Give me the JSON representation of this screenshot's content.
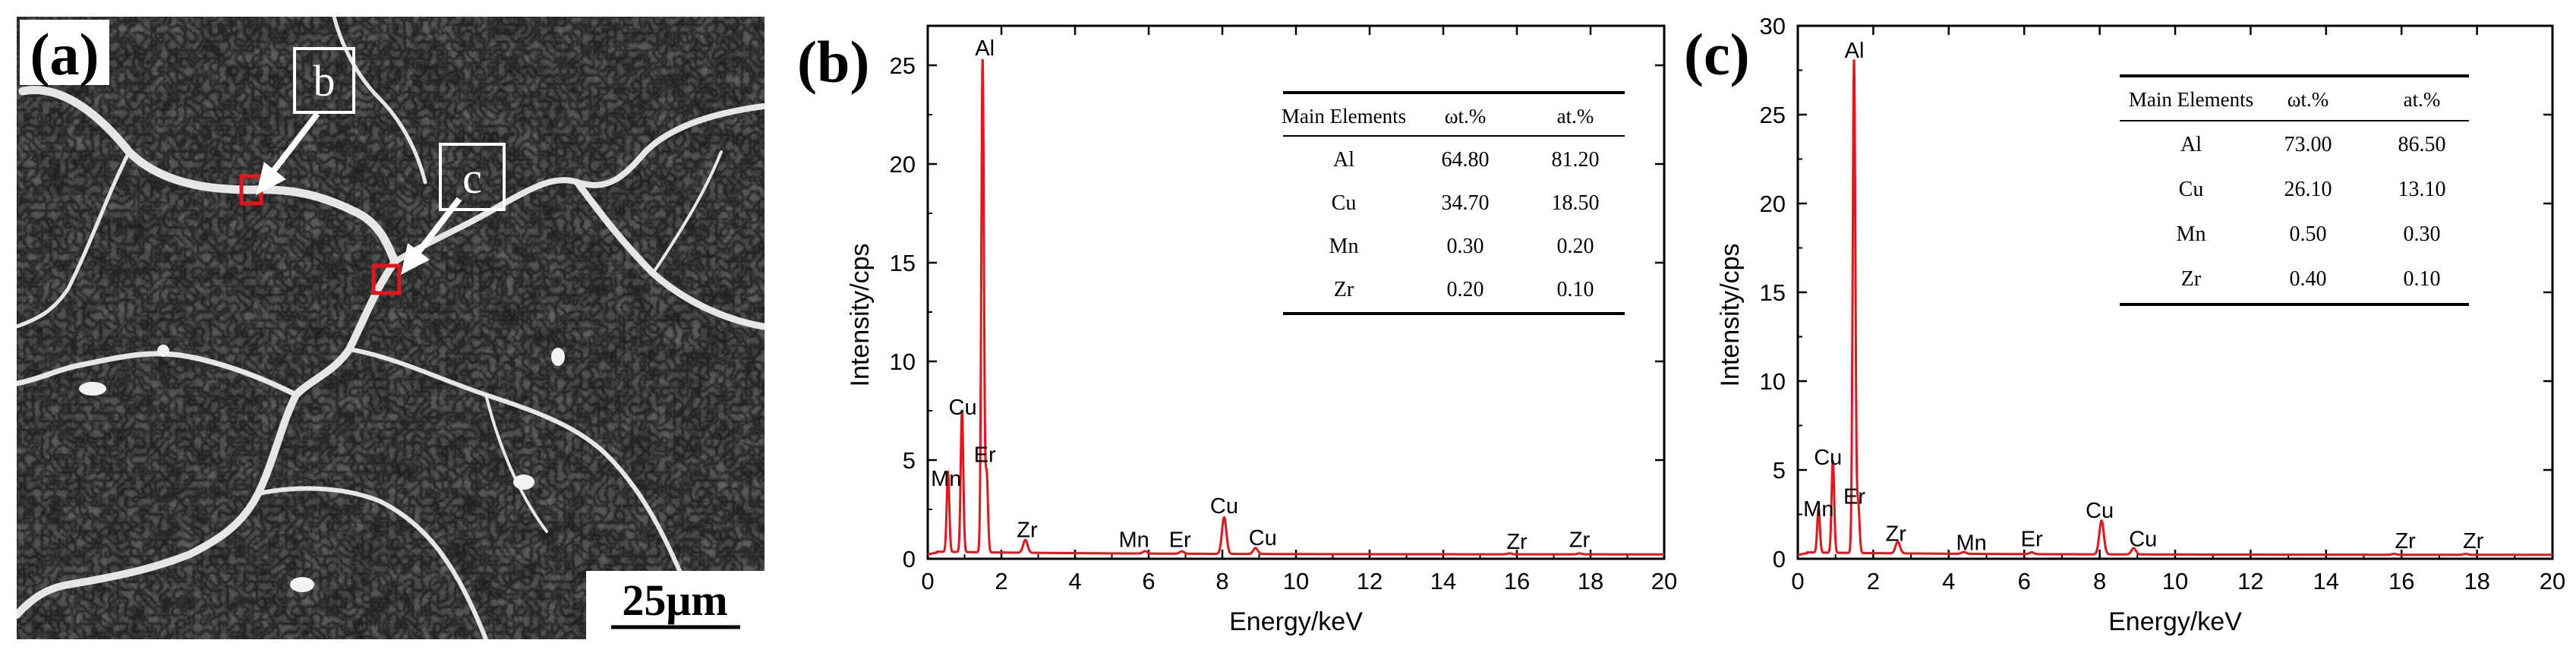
{
  "sem": {
    "panel_label": "(a)",
    "marker_b": "b",
    "marker_c": "c",
    "scale_bar": "25μm"
  },
  "chart_data": [
    {
      "type": "line",
      "panel_label": "(b)",
      "xlabel": "Energy/keV",
      "ylabel": "Intensity/cps",
      "xlim": [
        0,
        20
      ],
      "ylim": [
        0,
        27
      ],
      "xticks": [
        0,
        2,
        4,
        6,
        8,
        10,
        12,
        14,
        16,
        18,
        20
      ],
      "yticks": [
        0,
        5,
        10,
        15,
        20,
        25
      ],
      "series": [
        {
          "name": "EDS spectrum (b)",
          "color": "#e8141c",
          "peaks": [
            {
              "x": 0.55,
              "y": 4.0
            },
            {
              "x": 0.93,
              "y": 7.2
            },
            {
              "x": 1.49,
              "y": 25.0
            },
            {
              "x": 1.6,
              "y": 4.0
            },
            {
              "x": 2.65,
              "y": 0.65
            },
            {
              "x": 5.9,
              "y": 0.12
            },
            {
              "x": 6.9,
              "y": 0.12
            },
            {
              "x": 8.05,
              "y": 1.85
            },
            {
              "x": 8.9,
              "y": 0.3
            },
            {
              "x": 15.8,
              "y": 0.05
            },
            {
              "x": 17.7,
              "y": 0.05
            }
          ]
        }
      ],
      "peak_labels": [
        {
          "text": "Al",
          "x": 1.55,
          "y": 25.5
        },
        {
          "text": "Cu",
          "x": 0.95,
          "y": 7.3
        },
        {
          "text": "Mn",
          "x": 0.5,
          "y": 3.7
        },
        {
          "text": "Er",
          "x": 1.55,
          "y": 4.9
        },
        {
          "text": "Zr",
          "x": 2.7,
          "y": 1.1
        },
        {
          "text": "Mn",
          "x": 5.6,
          "y": 0.6
        },
        {
          "text": "Er",
          "x": 6.85,
          "y": 0.6
        },
        {
          "text": "Cu",
          "x": 8.05,
          "y": 2.3
        },
        {
          "text": "Cu",
          "x": 9.1,
          "y": 0.7
        },
        {
          "text": "Zr",
          "x": 16.0,
          "y": 0.5
        },
        {
          "text": "Zr",
          "x": 17.7,
          "y": 0.6
        }
      ],
      "table": {
        "headers": [
          "Main Elements",
          "ωt.%",
          "at.%"
        ],
        "rows": [
          [
            "Al",
            "64.80",
            "81.20"
          ],
          [
            "Cu",
            "34.70",
            "18.50"
          ],
          [
            "Mn",
            "0.30",
            "0.20"
          ],
          [
            "Zr",
            "0.20",
            "0.10"
          ]
        ]
      }
    },
    {
      "type": "line",
      "panel_label": "(c)",
      "xlabel": "Energy/keV",
      "ylabel": "Intensity/cps",
      "xlim": [
        0,
        20
      ],
      "ylim": [
        0,
        30
      ],
      "xticks": [
        0,
        2,
        4,
        6,
        8,
        10,
        12,
        14,
        16,
        18,
        20
      ],
      "yticks": [
        0,
        5,
        10,
        15,
        20,
        25,
        30
      ],
      "series": [
        {
          "name": "EDS spectrum (c)",
          "color": "#e8141c",
          "peaks": [
            {
              "x": 0.55,
              "y": 2.5
            },
            {
              "x": 0.93,
              "y": 5.2
            },
            {
              "x": 1.49,
              "y": 27.8
            },
            {
              "x": 1.6,
              "y": 2.8
            },
            {
              "x": 2.65,
              "y": 0.65
            },
            {
              "x": 4.4,
              "y": 0.1
            },
            {
              "x": 6.2,
              "y": 0.1
            },
            {
              "x": 8.05,
              "y": 1.9
            },
            {
              "x": 8.9,
              "y": 0.35
            },
            {
              "x": 15.8,
              "y": 0.05
            },
            {
              "x": 17.7,
              "y": 0.05
            }
          ]
        }
      ],
      "peak_labels": [
        {
          "text": "Al",
          "x": 1.5,
          "y": 28.2
        },
        {
          "text": "Cu",
          "x": 0.8,
          "y": 5.3
        },
        {
          "text": "Mn",
          "x": 0.55,
          "y": 2.4
        },
        {
          "text": "Er",
          "x": 1.5,
          "y": 3.1
        },
        {
          "text": "Zr",
          "x": 2.6,
          "y": 1.0
        },
        {
          "text": "Mn",
          "x": 4.6,
          "y": 0.5
        },
        {
          "text": "Er",
          "x": 6.2,
          "y": 0.7
        },
        {
          "text": "Cu",
          "x": 8.0,
          "y": 2.3
        },
        {
          "text": "Cu",
          "x": 9.15,
          "y": 0.7
        },
        {
          "text": "Zr",
          "x": 16.1,
          "y": 0.6
        },
        {
          "text": "Zr",
          "x": 17.9,
          "y": 0.6
        }
      ],
      "table": {
        "headers": [
          "Main Elements",
          "ωt.%",
          "at.%"
        ],
        "rows": [
          [
            "Al",
            "73.00",
            "86.50"
          ],
          [
            "Cu",
            "26.10",
            "13.10"
          ],
          [
            "Mn",
            "0.50",
            "0.30"
          ],
          [
            "Zr",
            "0.40",
            "0.10"
          ]
        ]
      }
    }
  ]
}
